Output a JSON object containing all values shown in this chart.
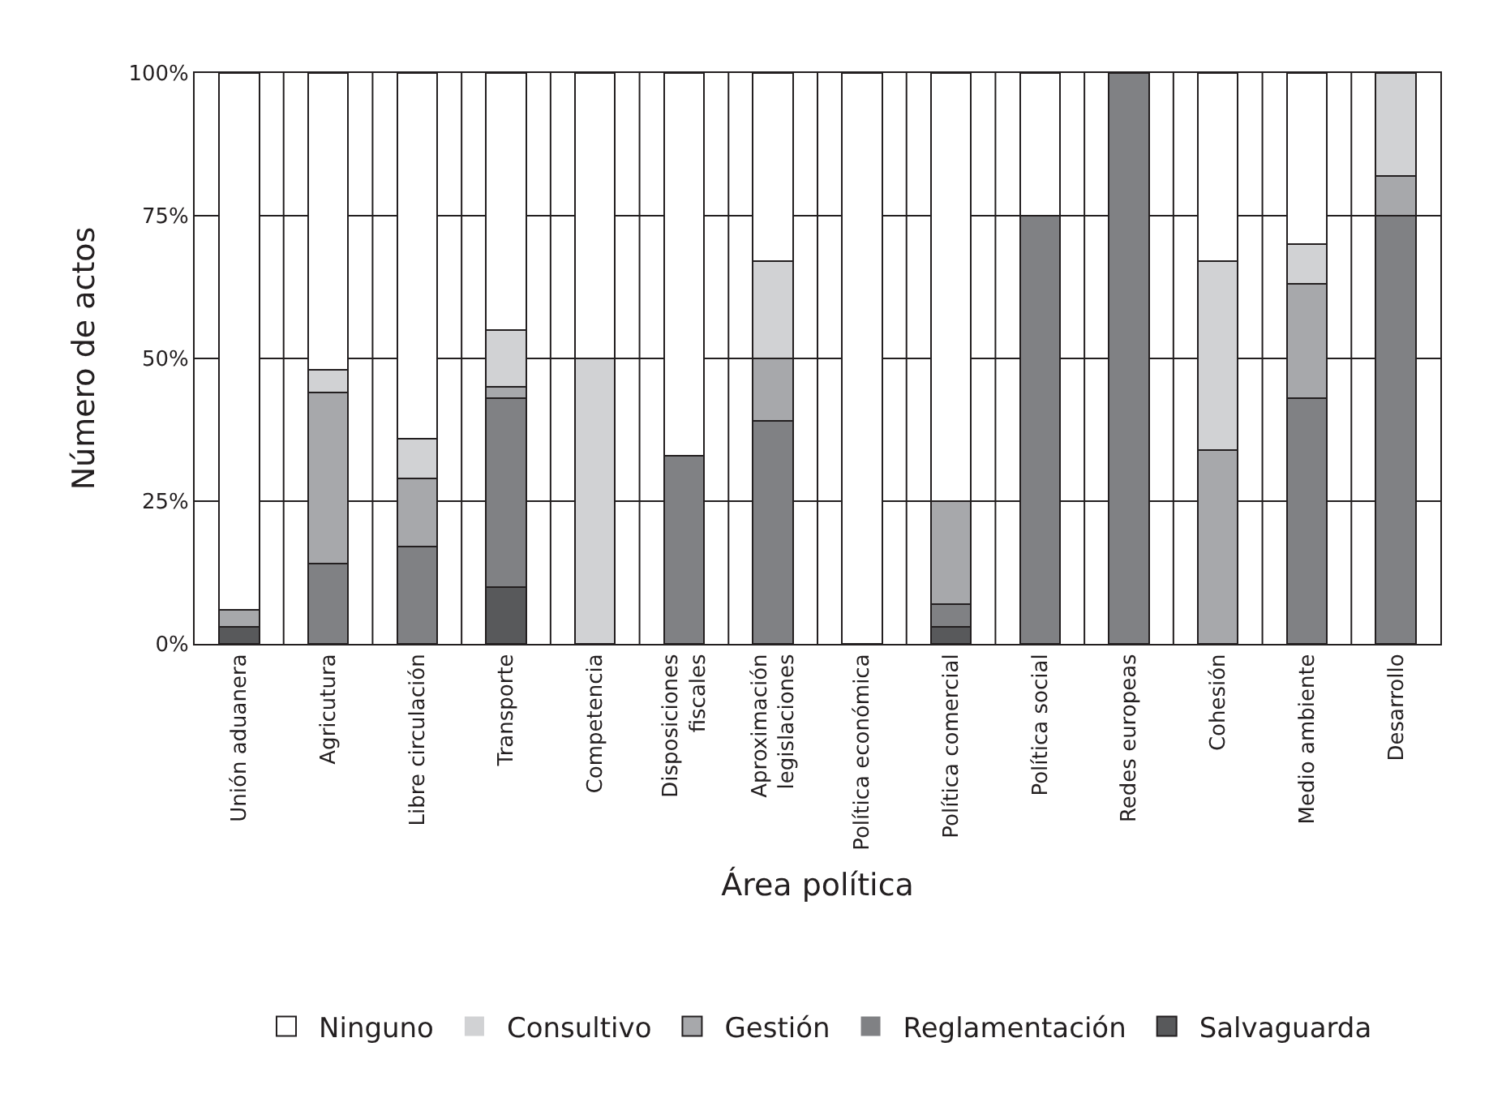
{
  "chart_data": {
    "type": "bar",
    "stacked": true,
    "xlabel": "Área política",
    "ylabel": "Número de actos",
    "categories": [
      "Unión aduanera",
      "Agricutura",
      "Libre circulación",
      "Transporte",
      "Competencia",
      "Disposiciones\nfiscales",
      "Aproximación\nlegislaciones",
      "Política económica",
      "Política comercial",
      "Política social",
      "Redes europeas",
      "Cohesión",
      "Medio ambiente",
      "Desarrollo"
    ],
    "series": [
      {
        "name": "Salvaguarda",
        "color": "#58595b",
        "values": [
          3,
          0,
          0,
          10,
          0,
          0,
          0,
          0,
          3,
          0,
          0,
          0,
          0,
          0
        ]
      },
      {
        "name": "Reglamentación",
        "color": "#808184",
        "values": [
          0,
          14,
          17,
          33,
          0,
          33,
          39,
          0,
          4,
          75,
          100,
          0,
          43,
          75
        ]
      },
      {
        "name": "Gestión",
        "color": "#a7a8ab",
        "values": [
          3,
          30,
          12,
          2,
          0,
          0,
          11,
          0,
          18,
          0,
          0,
          34,
          20,
          7
        ]
      },
      {
        "name": "Consultivo",
        "color": "#d1d2d4",
        "values": [
          0,
          4,
          7,
          10,
          50,
          0,
          17,
          0,
          0,
          0,
          0,
          33,
          7,
          18
        ]
      },
      {
        "name": "Ninguno",
        "color": "#ffffff",
        "values": [
          94,
          52,
          64,
          45,
          50,
          67,
          33,
          100,
          75,
          25,
          0,
          33,
          30,
          0
        ]
      }
    ],
    "ylim": [
      0,
      100
    ],
    "yticks": [
      {
        "value": 0,
        "label": "0%"
      },
      {
        "value": 25,
        "label": "25%"
      },
      {
        "value": 50,
        "label": "50%"
      },
      {
        "value": 75,
        "label": "75%"
      },
      {
        "value": 100,
        "label": "100%"
      }
    ],
    "grid": true,
    "legend": "bottom"
  }
}
